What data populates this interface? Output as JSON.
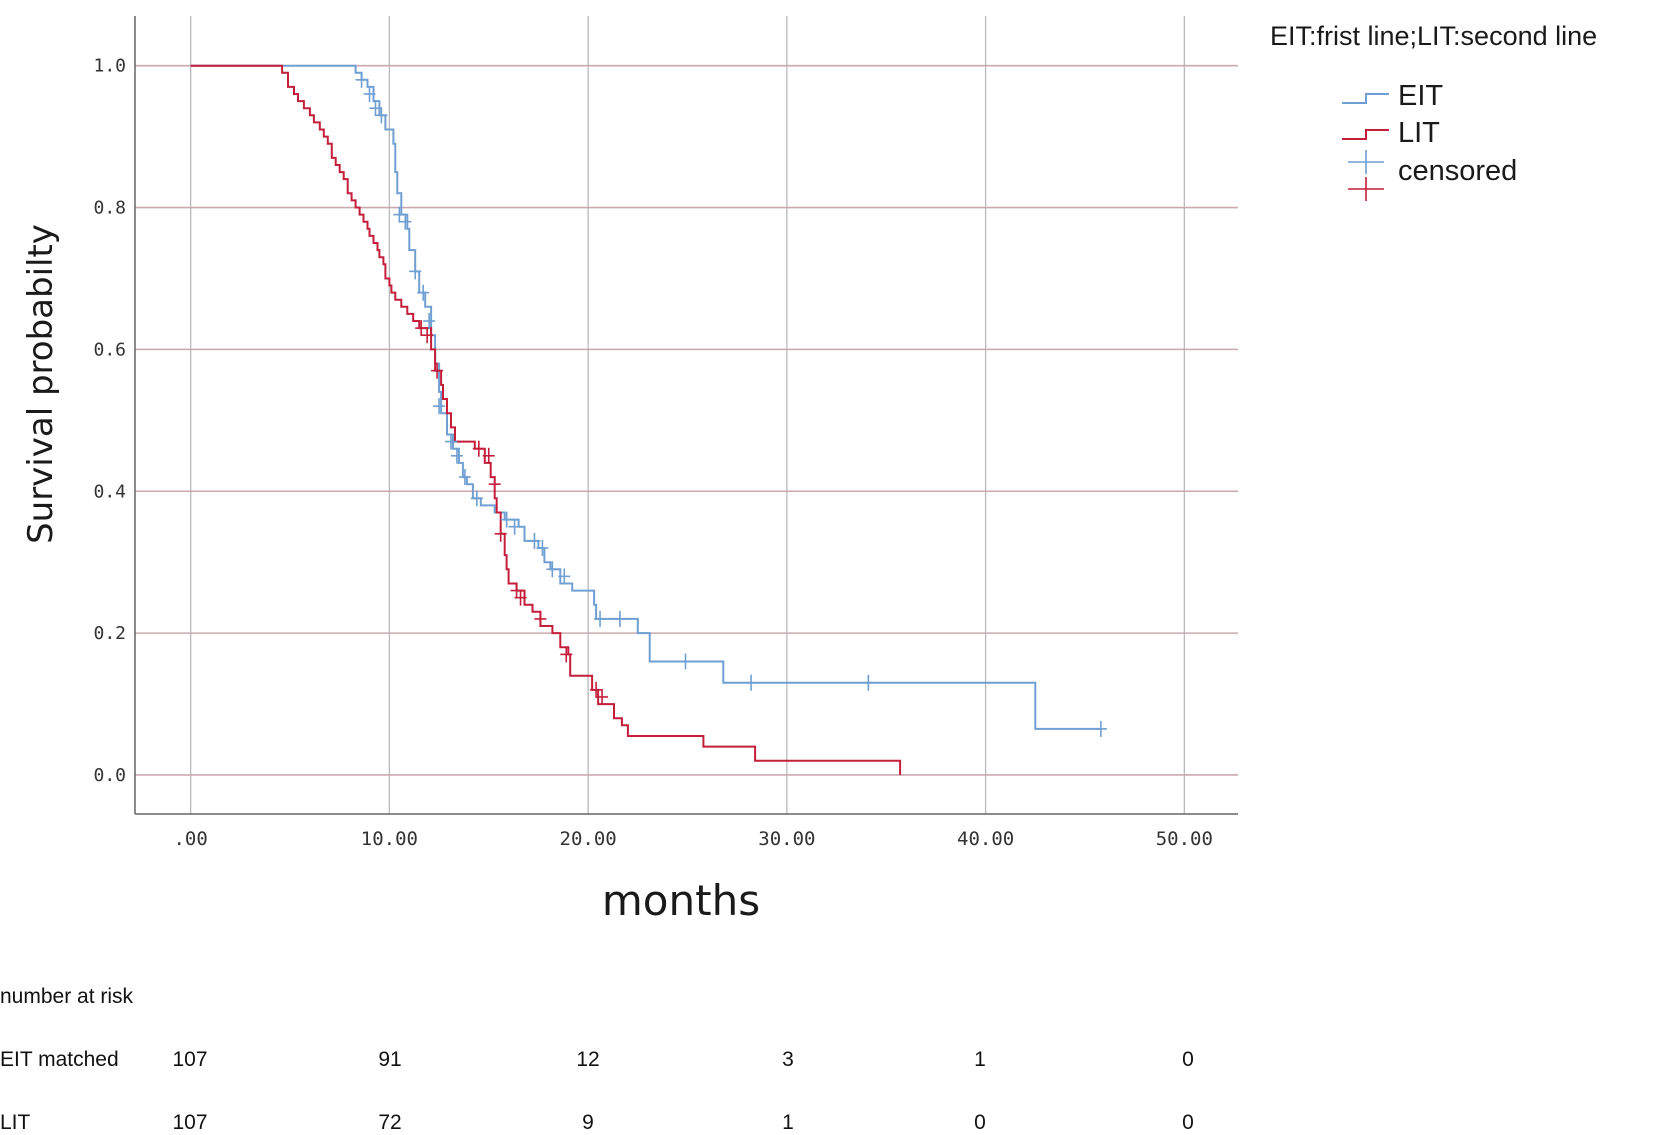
{
  "chart_data": {
    "type": "line",
    "subtype": "kaplan-meier",
    "title": "",
    "xlabel": "months",
    "ylabel": "Survival probabilty",
    "xlim": [
      -2.8,
      52.7
    ],
    "ylim": [
      -0.055,
      1.07
    ],
    "x_ticks": [
      0,
      10,
      20,
      30,
      40,
      50
    ],
    "x_tick_labels": [
      ".00",
      "10.00",
      "20.00",
      "30.00",
      "40.00",
      "50.00"
    ],
    "y_ticks": [
      0,
      0.2,
      0.4,
      0.6,
      0.8,
      1.0
    ],
    "y_tick_labels": [
      "0.0",
      "0.2",
      "0.4",
      "0.6",
      "0.8",
      "1.0"
    ],
    "grid": true,
    "legend": {
      "title": "EIT:frist line;LIT:second line",
      "placement": "top-right",
      "entries": [
        "EIT",
        "LIT",
        "censored"
      ]
    },
    "series": [
      {
        "name": "EIT",
        "color": "#6f9fd3",
        "steps": [
          [
            0,
            1.0
          ],
          [
            8.3,
            0.99
          ],
          [
            8.6,
            0.98
          ],
          [
            8.9,
            0.97
          ],
          [
            9.2,
            0.95
          ],
          [
            9.5,
            0.93
          ],
          [
            9.8,
            0.91
          ],
          [
            10.2,
            0.89
          ],
          [
            10.3,
            0.85
          ],
          [
            10.4,
            0.82
          ],
          [
            10.6,
            0.79
          ],
          [
            10.9,
            0.77
          ],
          [
            11.0,
            0.74
          ],
          [
            11.3,
            0.71
          ],
          [
            11.5,
            0.68
          ],
          [
            11.8,
            0.66
          ],
          [
            12.1,
            0.62
          ],
          [
            12.3,
            0.58
          ],
          [
            12.5,
            0.54
          ],
          [
            12.6,
            0.51
          ],
          [
            12.9,
            0.48
          ],
          [
            13.2,
            0.46
          ],
          [
            13.5,
            0.44
          ],
          [
            13.7,
            0.42
          ],
          [
            13.9,
            0.41
          ],
          [
            14.2,
            0.39
          ],
          [
            14.6,
            0.38
          ],
          [
            15.3,
            0.37
          ],
          [
            15.8,
            0.36
          ],
          [
            16.5,
            0.35
          ],
          [
            16.8,
            0.33
          ],
          [
            17.5,
            0.32
          ],
          [
            17.8,
            0.3
          ],
          [
            18.1,
            0.29
          ],
          [
            18.6,
            0.27
          ],
          [
            19.2,
            0.26
          ],
          [
            20.3,
            0.24
          ],
          [
            20.4,
            0.22
          ],
          [
            22.5,
            0.2
          ],
          [
            23.1,
            0.16
          ],
          [
            26.8,
            0.13
          ],
          [
            42.5,
            0.065
          ],
          [
            45.8,
            0.065
          ]
        ],
        "censored": [
          [
            8.6,
            0.98
          ],
          [
            9.0,
            0.96
          ],
          [
            9.3,
            0.94
          ],
          [
            9.6,
            0.93
          ],
          [
            10.5,
            0.79
          ],
          [
            10.8,
            0.78
          ],
          [
            11.3,
            0.71
          ],
          [
            11.7,
            0.68
          ],
          [
            12.0,
            0.64
          ],
          [
            12.5,
            0.52
          ],
          [
            13.1,
            0.47
          ],
          [
            13.4,
            0.45
          ],
          [
            13.8,
            0.42
          ],
          [
            14.4,
            0.39
          ],
          [
            15.9,
            0.36
          ],
          [
            16.3,
            0.35
          ],
          [
            17.3,
            0.33
          ],
          [
            17.7,
            0.32
          ],
          [
            18.2,
            0.29
          ],
          [
            18.8,
            0.28
          ],
          [
            20.6,
            0.22
          ],
          [
            21.6,
            0.22
          ],
          [
            24.9,
            0.16
          ],
          [
            28.2,
            0.13
          ],
          [
            34.1,
            0.13
          ],
          [
            45.8,
            0.065
          ]
        ]
      },
      {
        "name": "LIT",
        "color": "#c41e3a",
        "steps": [
          [
            0,
            1.0
          ],
          [
            4.6,
            0.99
          ],
          [
            4.9,
            0.97
          ],
          [
            5.2,
            0.96
          ],
          [
            5.4,
            0.95
          ],
          [
            5.7,
            0.94
          ],
          [
            6.0,
            0.93
          ],
          [
            6.2,
            0.92
          ],
          [
            6.5,
            0.91
          ],
          [
            6.7,
            0.9
          ],
          [
            6.9,
            0.89
          ],
          [
            7.1,
            0.87
          ],
          [
            7.3,
            0.86
          ],
          [
            7.5,
            0.85
          ],
          [
            7.7,
            0.84
          ],
          [
            7.9,
            0.82
          ],
          [
            8.1,
            0.81
          ],
          [
            8.3,
            0.8
          ],
          [
            8.5,
            0.79
          ],
          [
            8.7,
            0.78
          ],
          [
            8.9,
            0.77
          ],
          [
            9.0,
            0.76
          ],
          [
            9.2,
            0.75
          ],
          [
            9.4,
            0.74
          ],
          [
            9.5,
            0.73
          ],
          [
            9.7,
            0.72
          ],
          [
            9.8,
            0.7
          ],
          [
            10.0,
            0.69
          ],
          [
            10.1,
            0.68
          ],
          [
            10.3,
            0.67
          ],
          [
            10.6,
            0.66
          ],
          [
            10.9,
            0.65
          ],
          [
            11.2,
            0.64
          ],
          [
            11.5,
            0.63
          ],
          [
            12.1,
            0.6
          ],
          [
            12.3,
            0.57
          ],
          [
            12.6,
            0.55
          ],
          [
            12.7,
            0.53
          ],
          [
            12.9,
            0.51
          ],
          [
            13.1,
            0.49
          ],
          [
            13.3,
            0.47
          ],
          [
            14.3,
            0.46
          ],
          [
            14.8,
            0.44
          ],
          [
            15.1,
            0.42
          ],
          [
            15.3,
            0.39
          ],
          [
            15.4,
            0.37
          ],
          [
            15.6,
            0.34
          ],
          [
            15.8,
            0.31
          ],
          [
            15.9,
            0.29
          ],
          [
            16.0,
            0.27
          ],
          [
            16.4,
            0.26
          ],
          [
            16.8,
            0.24
          ],
          [
            17.2,
            0.23
          ],
          [
            17.6,
            0.21
          ],
          [
            18.2,
            0.2
          ],
          [
            18.6,
            0.18
          ],
          [
            19.0,
            0.17
          ],
          [
            19.1,
            0.14
          ],
          [
            20.2,
            0.12
          ],
          [
            20.5,
            0.1
          ],
          [
            21.3,
            0.08
          ],
          [
            21.7,
            0.07
          ],
          [
            22.0,
            0.055
          ],
          [
            25.8,
            0.04
          ],
          [
            28.4,
            0.02
          ],
          [
            35.7,
            0.0
          ]
        ],
        "censored": [
          [
            11.6,
            0.63
          ],
          [
            11.9,
            0.62
          ],
          [
            12.4,
            0.57
          ],
          [
            14.5,
            0.46
          ],
          [
            15.0,
            0.45
          ],
          [
            15.3,
            0.41
          ],
          [
            15.6,
            0.34
          ],
          [
            16.4,
            0.26
          ],
          [
            16.6,
            0.25
          ],
          [
            17.6,
            0.22
          ],
          [
            18.9,
            0.17
          ],
          [
            20.4,
            0.12
          ],
          [
            20.7,
            0.11
          ]
        ]
      }
    ],
    "number_at_risk": {
      "label": "number at risk",
      "rows": [
        {
          "name": "EIT matched",
          "values": [
            "107",
            "91",
            "12",
            "3",
            "1",
            "0"
          ]
        },
        {
          "name": "LIT",
          "values": [
            "107",
            "72",
            "9",
            "1",
            "0",
            "0"
          ]
        }
      ]
    }
  }
}
